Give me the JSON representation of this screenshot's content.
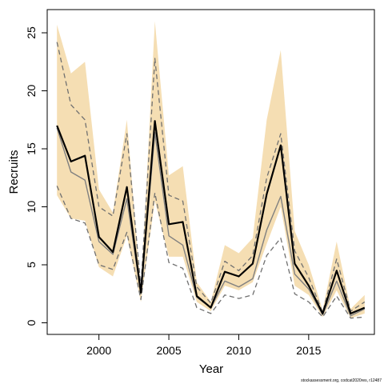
{
  "chart_data": {
    "type": "line",
    "xlabel": "Year",
    "ylabel": "Recruits",
    "xlim": [
      1996.3,
      2019.7
    ],
    "ylim": [
      -1.0,
      27.0
    ],
    "x_ticks": [
      2000,
      2005,
      2010,
      2015
    ],
    "y_ticks": [
      0,
      5,
      10,
      15,
      20,
      25
    ],
    "grid": false,
    "legend": "none",
    "x": [
      1997,
      1998,
      1999,
      2000,
      2001,
      2002,
      2003,
      2004,
      2005,
      2006,
      2007,
      2008,
      2009,
      2010,
      2011,
      2012,
      2013,
      2014,
      2015,
      2016,
      2017,
      2018,
      2019
    ],
    "interval": {
      "lower": [
        11.0,
        9.0,
        8.8,
        4.8,
        4.0,
        7.5,
        1.8,
        10.5,
        5.7,
        5.7,
        1.8,
        1.0,
        3.2,
        2.8,
        3.5,
        6.8,
        10.0,
        3.2,
        2.4,
        0.5,
        2.8,
        0.4,
        0.8
      ],
      "upper": [
        25.7,
        21.5,
        22.5,
        11.5,
        9.5,
        17.5,
        2.8,
        26.0,
        12.7,
        13.5,
        3.5,
        1.8,
        6.7,
        6.0,
        7.3,
        17.5,
        23.5,
        7.9,
        5.0,
        1.1,
        7.0,
        1.2,
        2.4
      ],
      "color": "#f5deb3"
    },
    "series": [
      {
        "values": [
          17.0,
          13.9,
          14.4,
          7.4,
          6.1,
          11.7,
          2.6,
          17.4,
          8.5,
          8.7,
          2.3,
          1.3,
          4.4,
          4.0,
          5.1,
          11.1,
          15.3,
          5.1,
          3.2,
          0.8,
          4.5,
          0.8,
          1.3
        ],
        "color": "#000000",
        "style": "solid",
        "width": 2.2
      },
      {
        "values": [
          16.8,
          13.0,
          12.3,
          7.0,
          5.9,
          10.7,
          2.5,
          16.4,
          7.5,
          6.7,
          2.2,
          1.3,
          3.6,
          3.1,
          3.8,
          8.0,
          10.9,
          4.2,
          2.9,
          0.7,
          3.6,
          0.6,
          1.2
        ],
        "color": "#808080",
        "style": "solid",
        "width": 1.4
      },
      {
        "values": [
          24.2,
          18.8,
          17.5,
          10.0,
          9.2,
          16.3,
          3.1,
          22.8,
          11.0,
          10.5,
          3.1,
          1.7,
          5.3,
          4.5,
          5.8,
          12.5,
          16.3,
          6.2,
          3.9,
          0.9,
          5.5,
          1.0,
          1.8
        ],
        "color": "#707070",
        "style": "dashed",
        "width": 1.3
      },
      {
        "values": [
          11.8,
          9.0,
          8.6,
          5.0,
          4.6,
          7.8,
          2.0,
          11.2,
          5.2,
          4.7,
          1.3,
          0.8,
          2.4,
          2.1,
          2.4,
          5.8,
          7.3,
          2.5,
          1.8,
          0.5,
          2.3,
          0.4,
          0.5
        ],
        "color": "#707070",
        "style": "dashed",
        "width": 1.3
      }
    ]
  },
  "footnote": "stockassessment.org, codcat2020res, r12487"
}
